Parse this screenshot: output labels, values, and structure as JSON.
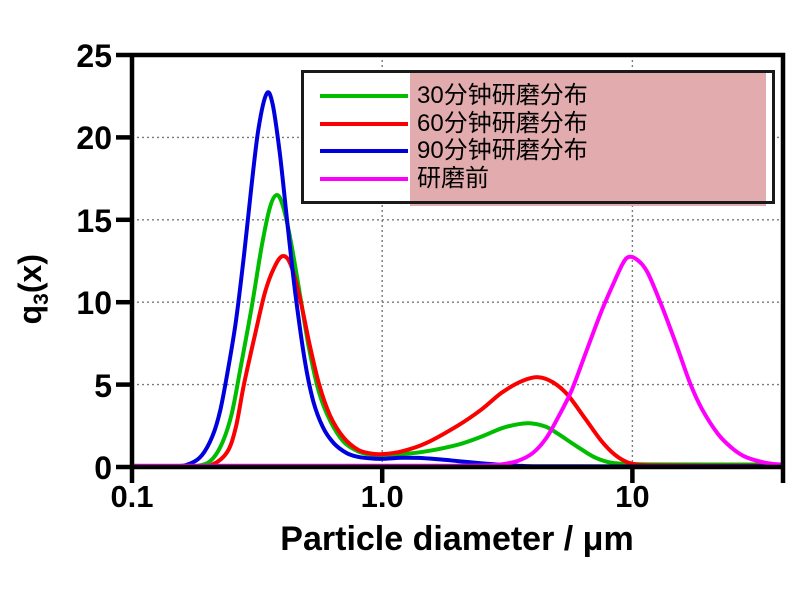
{
  "figure": {
    "background": "#ffffff",
    "frame_color": "#000000",
    "grid_color": "#7a7a7a"
  },
  "x_axis": {
    "title": "Particle diameter / μm",
    "scale": "log",
    "min": 0.1,
    "max": 40,
    "tick_marks": [
      0.1,
      1.0,
      10,
      40
    ],
    "tick_labels": [
      {
        "value": 0.1,
        "label": "0.1"
      },
      {
        "value": 1.0,
        "label": "1.0"
      },
      {
        "value": 10,
        "label": "10"
      }
    ],
    "grid_at": [
      1.0,
      10
    ]
  },
  "y_axis": {
    "title_base": "q",
    "title_sub": "3",
    "title_rest": "(x)",
    "min": 0,
    "max": 25,
    "tick_marks": [
      0,
      5,
      10,
      15,
      20,
      25
    ],
    "tick_labels": [
      "0",
      "5",
      "10",
      "15",
      "20",
      "25"
    ],
    "grid_at": [
      5,
      10,
      15,
      20
    ]
  },
  "legend": {
    "background": "#ffffff",
    "border_color": "#1a1a1a",
    "highlight_color": "#e2abad",
    "items": [
      {
        "label": "30分钟研磨分布",
        "color": "#00bd00"
      },
      {
        "label": "60分钟研磨分布",
        "color": "#fb0000"
      },
      {
        "label": "90分钟研磨分布",
        "color": "#0000df"
      },
      {
        "label": "研磨前",
        "color": "#fd00fd"
      }
    ]
  },
  "chart_data": {
    "type": "line",
    "x_scale": "log",
    "xlabel": "Particle diameter / μm",
    "ylabel": "q3(x)",
    "xlim": [
      0.1,
      40
    ],
    "ylim": [
      0,
      25
    ],
    "x_tick_labels": [
      "0.1",
      "1.0",
      "10"
    ],
    "y_ticks": [
      0,
      5,
      10,
      15,
      20,
      25
    ],
    "grid": "dotted, horizontal at y=5,10,15,20; vertical at x=1,10",
    "legend_position": "top-right inset",
    "series": [
      {
        "name": "30分钟研磨分布",
        "color": "#00bd00",
        "peaks": [
          {
            "x": 0.38,
            "y": 16.5
          },
          {
            "x": 3.9,
            "y": 2.65
          }
        ],
        "points": [
          [
            0.1,
            0
          ],
          [
            0.16,
            0.02
          ],
          [
            0.19,
            0.12
          ],
          [
            0.21,
            0.5
          ],
          [
            0.23,
            1.5
          ],
          [
            0.25,
            3.2
          ],
          [
            0.27,
            5.8
          ],
          [
            0.3,
            9.6
          ],
          [
            0.33,
            13.4
          ],
          [
            0.355,
            15.7
          ],
          [
            0.378,
            16.5
          ],
          [
            0.4,
            15.9
          ],
          [
            0.43,
            13.8
          ],
          [
            0.47,
            10.4
          ],
          [
            0.51,
            7.2
          ],
          [
            0.56,
            4.5
          ],
          [
            0.62,
            2.8
          ],
          [
            0.7,
            1.55
          ],
          [
            0.8,
            0.95
          ],
          [
            0.9,
            0.75
          ],
          [
            1.0,
            0.7
          ],
          [
            1.2,
            0.78
          ],
          [
            1.5,
            0.95
          ],
          [
            2.0,
            1.35
          ],
          [
            2.5,
            1.85
          ],
          [
            3.0,
            2.35
          ],
          [
            3.5,
            2.6
          ],
          [
            3.9,
            2.65
          ],
          [
            4.5,
            2.45
          ],
          [
            5.0,
            2.05
          ],
          [
            6.0,
            1.25
          ],
          [
            7.0,
            0.62
          ],
          [
            8.0,
            0.3
          ],
          [
            9.0,
            0.2
          ],
          [
            12,
            0.16
          ],
          [
            20,
            0.15
          ],
          [
            40,
            0.15
          ]
        ]
      },
      {
        "name": "60分钟研磨分布",
        "color": "#fb0000",
        "peaks": [
          {
            "x": 0.4,
            "y": 12.8
          },
          {
            "x": 4.2,
            "y": 5.45
          }
        ],
        "points": [
          [
            0.1,
            0
          ],
          [
            0.18,
            0.02
          ],
          [
            0.21,
            0.15
          ],
          [
            0.24,
            0.9
          ],
          [
            0.26,
            2.4
          ],
          [
            0.28,
            5.0
          ],
          [
            0.31,
            8.0
          ],
          [
            0.34,
            10.6
          ],
          [
            0.37,
            12.1
          ],
          [
            0.4,
            12.8
          ],
          [
            0.43,
            12.3
          ],
          [
            0.47,
            10.2
          ],
          [
            0.51,
            7.6
          ],
          [
            0.56,
            5.0
          ],
          [
            0.62,
            3.1
          ],
          [
            0.7,
            1.8
          ],
          [
            0.8,
            1.05
          ],
          [
            0.9,
            0.82
          ],
          [
            1.0,
            0.78
          ],
          [
            1.2,
            0.95
          ],
          [
            1.5,
            1.45
          ],
          [
            2.0,
            2.5
          ],
          [
            2.5,
            3.5
          ],
          [
            3.0,
            4.5
          ],
          [
            3.6,
            5.2
          ],
          [
            4.2,
            5.45
          ],
          [
            4.8,
            5.15
          ],
          [
            5.5,
            4.4
          ],
          [
            6.5,
            2.9
          ],
          [
            7.5,
            1.6
          ],
          [
            8.5,
            0.75
          ],
          [
            9.5,
            0.3
          ],
          [
            10.5,
            0.14
          ],
          [
            12,
            0.1
          ],
          [
            20,
            0.08
          ],
          [
            40,
            0.08
          ]
        ]
      },
      {
        "name": "90分钟研磨分布",
        "color": "#0000df",
        "peaks": [
          {
            "x": 0.345,
            "y": 22.65
          }
        ],
        "points": [
          [
            0.1,
            0
          ],
          [
            0.15,
            0.05
          ],
          [
            0.17,
            0.2
          ],
          [
            0.19,
            0.7
          ],
          [
            0.21,
            1.9
          ],
          [
            0.225,
            3.4
          ],
          [
            0.24,
            5.6
          ],
          [
            0.26,
            8.8
          ],
          [
            0.28,
            12.8
          ],
          [
            0.3,
            17.0
          ],
          [
            0.32,
            20.5
          ],
          [
            0.345,
            22.65
          ],
          [
            0.365,
            22.0
          ],
          [
            0.39,
            19.0
          ],
          [
            0.42,
            14.5
          ],
          [
            0.45,
            10.5
          ],
          [
            0.49,
            6.5
          ],
          [
            0.53,
            4.0
          ],
          [
            0.58,
            2.4
          ],
          [
            0.64,
            1.45
          ],
          [
            0.72,
            0.85
          ],
          [
            0.8,
            0.62
          ],
          [
            0.9,
            0.52
          ],
          [
            1.0,
            0.5
          ],
          [
            1.2,
            0.56
          ],
          [
            1.4,
            0.55
          ],
          [
            1.7,
            0.46
          ],
          [
            2.0,
            0.36
          ],
          [
            2.5,
            0.22
          ],
          [
            3.0,
            0.13
          ],
          [
            3.5,
            0.08
          ],
          [
            4.0,
            0.05
          ],
          [
            6.0,
            0.04
          ],
          [
            40,
            0.04
          ]
        ]
      },
      {
        "name": "研磨前",
        "color": "#fd00fd",
        "peaks": [
          {
            "x": 9.7,
            "y": 12.75
          }
        ],
        "points": [
          [
            0.1,
            0.08
          ],
          [
            1.0,
            0.08
          ],
          [
            2.0,
            0.08
          ],
          [
            2.6,
            0.1
          ],
          [
            3.0,
            0.16
          ],
          [
            3.5,
            0.38
          ],
          [
            4.0,
            0.85
          ],
          [
            4.5,
            1.7
          ],
          [
            5.0,
            2.9
          ],
          [
            5.7,
            4.6
          ],
          [
            6.5,
            6.9
          ],
          [
            7.5,
            9.4
          ],
          [
            8.5,
            11.3
          ],
          [
            9.2,
            12.4
          ],
          [
            9.7,
            12.75
          ],
          [
            10.5,
            12.55
          ],
          [
            11.5,
            11.8
          ],
          [
            13,
            9.9
          ],
          [
            15,
            7.4
          ],
          [
            17,
            5.1
          ],
          [
            19,
            3.5
          ],
          [
            22,
            2.0
          ],
          [
            25,
            1.15
          ],
          [
            28,
            0.65
          ],
          [
            32,
            0.35
          ],
          [
            36,
            0.2
          ],
          [
            40,
            0.15
          ]
        ]
      }
    ]
  }
}
